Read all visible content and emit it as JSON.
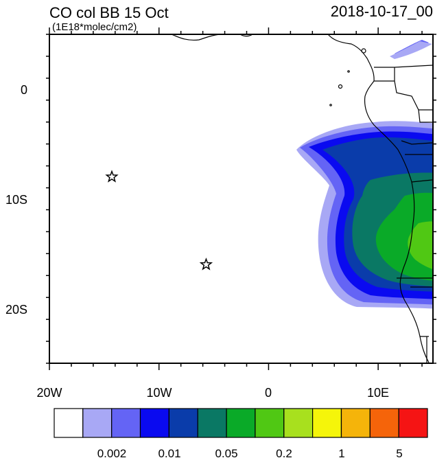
{
  "header": {
    "title": "CO col BB 15 Oct",
    "units": "(1E18*molec/cm2)",
    "timestamp": "2018-10-17_00"
  },
  "map": {
    "lon_range": [
      -20,
      15
    ],
    "lat_range": [
      -25,
      5
    ],
    "x_tick_labels": [
      "20W",
      "10W",
      "0",
      "10E"
    ],
    "y_tick_labels": [
      "0",
      "10S",
      "20S"
    ],
    "markers": [
      {
        "name": "star-marker-1",
        "lon": -14.3,
        "lat": -8.0
      },
      {
        "name": "star-marker-2",
        "lon": -5.7,
        "lat": -16.0
      }
    ]
  },
  "legend": {
    "colors": [
      "#ffffff",
      "#a8a8f5",
      "#6464f5",
      "#0a0af0",
      "#0a3caa",
      "#0a7864",
      "#0aaa28",
      "#50c814",
      "#a8e01e",
      "#f5f50a",
      "#f5b40a",
      "#f5640a",
      "#f51414"
    ],
    "labels": [
      "0.002",
      "0.01",
      "0.05",
      "0.2",
      "1",
      "5"
    ]
  }
}
